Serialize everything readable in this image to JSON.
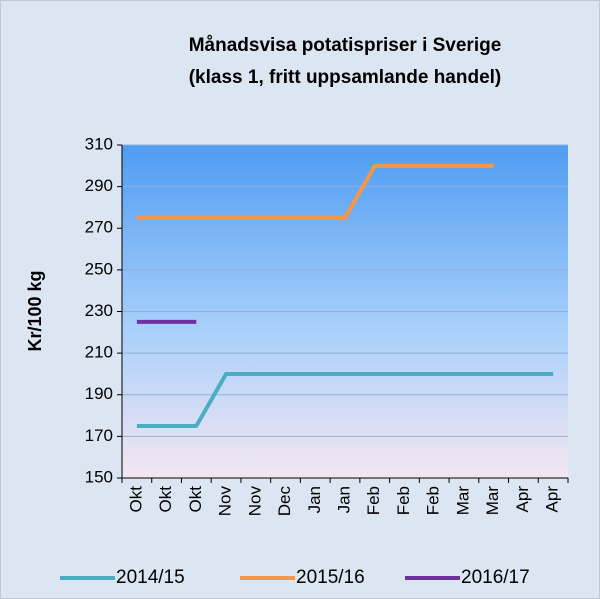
{
  "chart_data": {
    "type": "line",
    "title": [
      "Månadsvisa potatispriser i Sverige",
      "(klass 1, fritt uppsamlande handel)"
    ],
    "y_label": "Kr/100 kg",
    "categories": [
      "Okt",
      "Okt",
      "Okt",
      "Nov",
      "Nov",
      "Dec",
      "Jan",
      "Jan",
      "Feb",
      "Feb",
      "Feb",
      "Mar",
      "Mar",
      "Apr",
      "Apr"
    ],
    "series": [
      {
        "name": "2014/15",
        "color": "#4bacc6",
        "values": [
          175,
          175,
          175,
          200,
          200,
          200,
          200,
          200,
          200,
          200,
          200,
          200,
          200,
          200,
          200
        ]
      },
      {
        "name": "2015/16",
        "color": "#f79646",
        "values": [
          275,
          275,
          275,
          275,
          275,
          275,
          275,
          275,
          300,
          300,
          300,
          300,
          300,
          null,
          null
        ]
      },
      {
        "name": "2016/17",
        "color": "#7030a0",
        "values": [
          225,
          225,
          225,
          null,
          null,
          null,
          null,
          null,
          null,
          null,
          null,
          null,
          null,
          null,
          null
        ]
      }
    ],
    "ylim": [
      150,
      310
    ],
    "yticks": [
      150,
      170,
      190,
      210,
      230,
      250,
      270,
      290,
      310
    ],
    "grid": true,
    "legend": "bottom"
  }
}
